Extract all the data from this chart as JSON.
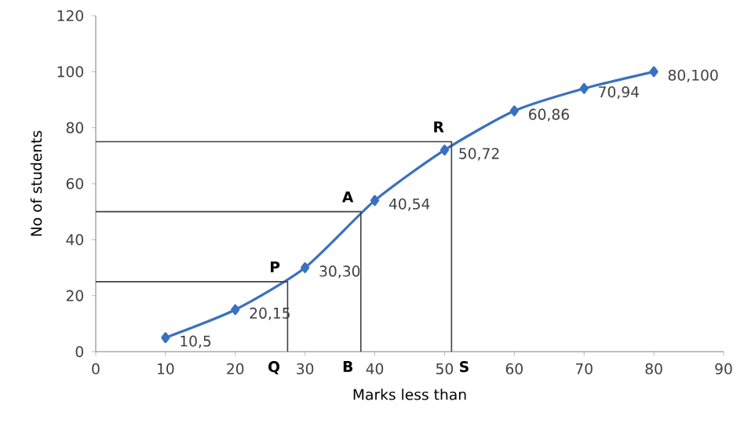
{
  "chart_data": {
    "type": "line",
    "xlabel": "Marks less than",
    "ylabel": "No of students",
    "xlim": [
      0,
      90
    ],
    "xticks": [
      0,
      10,
      20,
      30,
      40,
      50,
      60,
      70,
      80,
      90
    ],
    "ylim": [
      0,
      120
    ],
    "yticks": [
      0,
      20,
      40,
      60,
      80,
      100,
      120
    ],
    "grid": false,
    "series": [
      {
        "color": "#3a70c0",
        "marker": "diamond",
        "x": [
          10,
          20,
          30,
          40,
          50,
          60,
          70,
          80
        ],
        "values": [
          5,
          15,
          30,
          54,
          72,
          86,
          94,
          100
        ]
      },
      {
        "color": "#404040",
        "marker": "none",
        "x": [
          0,
          27.5,
          27.5
        ],
        "values": [
          25,
          25,
          0
        ]
      },
      {
        "color": "#404040",
        "marker": "none",
        "x": [
          0,
          38,
          38
        ],
        "values": [
          50,
          50,
          0
        ]
      },
      {
        "color": "#404040",
        "marker": "none",
        "x": [
          0,
          51,
          51
        ],
        "values": [
          75,
          75,
          0
        ]
      }
    ],
    "annotations": [
      {
        "text": "10,5",
        "x": 10,
        "y": 5
      },
      {
        "text": "20,15",
        "x": 20,
        "y": 15
      },
      {
        "text": "30,30",
        "x": 30,
        "y": 30
      },
      {
        "text": "40,54",
        "x": 40,
        "y": 54
      },
      {
        "text": "50,72",
        "x": 50,
        "y": 72
      },
      {
        "text": "60,86",
        "x": 60,
        "y": 86
      },
      {
        "text": "70,94",
        "x": 70,
        "y": 94
      },
      {
        "text": "80,100",
        "x": 80,
        "y": 100
      },
      {
        "text": "P",
        "x": 27.5,
        "y": 25
      },
      {
        "text": "A",
        "x": 38,
        "y": 50
      },
      {
        "text": "R",
        "x": 51,
        "y": 75
      },
      {
        "text": "Q",
        "x": 27.5,
        "y": 0
      },
      {
        "text": "B",
        "x": 38,
        "y": 0
      },
      {
        "text": "S",
        "x": 51,
        "y": 0
      }
    ]
  }
}
